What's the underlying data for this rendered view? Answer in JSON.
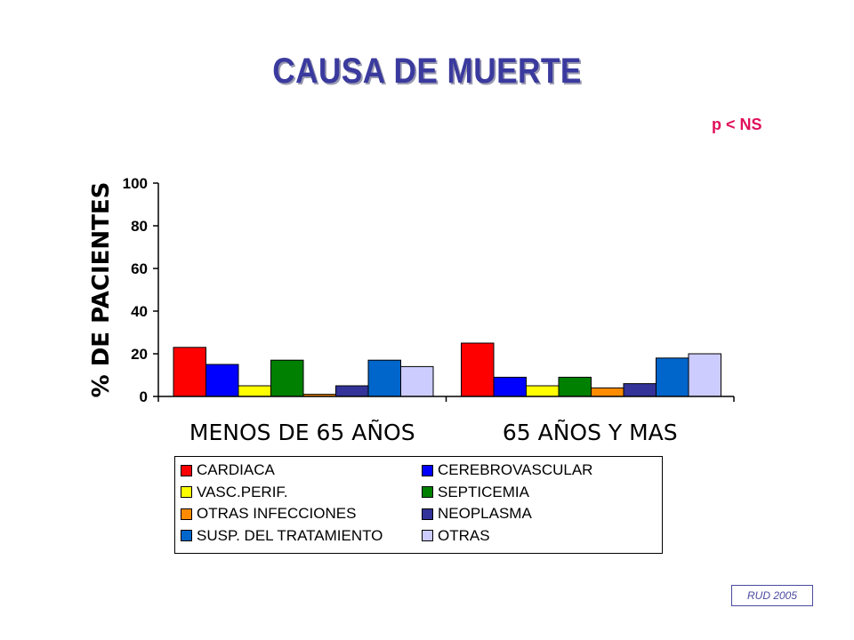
{
  "title": "CAUSA DE MUERTE",
  "p_value": "p < NS",
  "credit": "RUD 2005",
  "chart_data": {
    "type": "bar",
    "title": "",
    "xlabel": "",
    "ylabel": "% DE PACIENTES",
    "ylim": [
      0,
      100
    ],
    "yticks": [
      "0",
      "20",
      "40",
      "60",
      "80",
      "100"
    ],
    "categories": [
      "MENOS DE 65 AÑOS",
      "65 AÑOS Y MAS"
    ],
    "legend_position": "bottom",
    "series": [
      {
        "name": "CARDIACA",
        "color": "#ff0000",
        "values": [
          23,
          25
        ]
      },
      {
        "name": "CEREBROVASCULAR",
        "color": "#0000ff",
        "values": [
          15,
          9
        ]
      },
      {
        "name": "VASC.PERIF.",
        "color": "#ffff00",
        "values": [
          5,
          5
        ]
      },
      {
        "name": "SEPTICEMIA",
        "color": "#008000",
        "values": [
          17,
          9
        ]
      },
      {
        "name": "OTRAS INFECCIONES",
        "color": "#ff8c00",
        "values": [
          1,
          4
        ]
      },
      {
        "name": "NEOPLASMA",
        "color": "#333399",
        "values": [
          5,
          6
        ]
      },
      {
        "name": "SUSP. DEL TRATAMIENTO",
        "color": "#0066cc",
        "values": [
          17,
          18
        ]
      },
      {
        "name": "OTRAS",
        "color": "#ccccff",
        "values": [
          14,
          20
        ]
      }
    ]
  }
}
